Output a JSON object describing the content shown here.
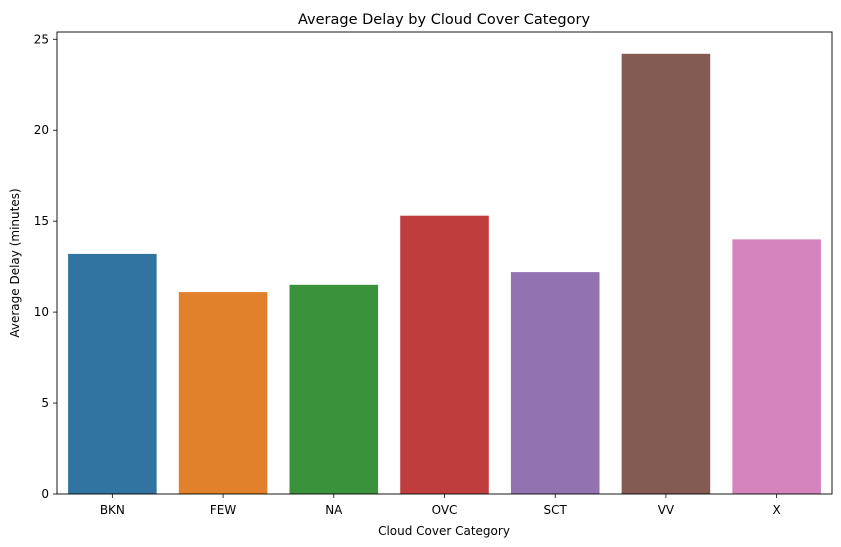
{
  "chart_data": {
    "type": "bar",
    "title": "Average Delay by Cloud Cover Category",
    "xlabel": "Cloud Cover Category",
    "ylabel": "Average Delay (minutes)",
    "categories": [
      "BKN",
      "FEW",
      "NA",
      "OVC",
      "SCT",
      "VV",
      "X"
    ],
    "values": [
      13.2,
      11.1,
      11.5,
      15.3,
      12.2,
      24.2,
      14.0
    ],
    "colors": [
      "#3274a1",
      "#e1812c",
      "#3a923a",
      "#c03d3e",
      "#9372b2",
      "#845b53",
      "#d684bd"
    ],
    "yticks": [
      0,
      5,
      10,
      15,
      20,
      25
    ],
    "ylim": [
      0,
      25.4
    ],
    "grid": false,
    "legend": "none"
  }
}
